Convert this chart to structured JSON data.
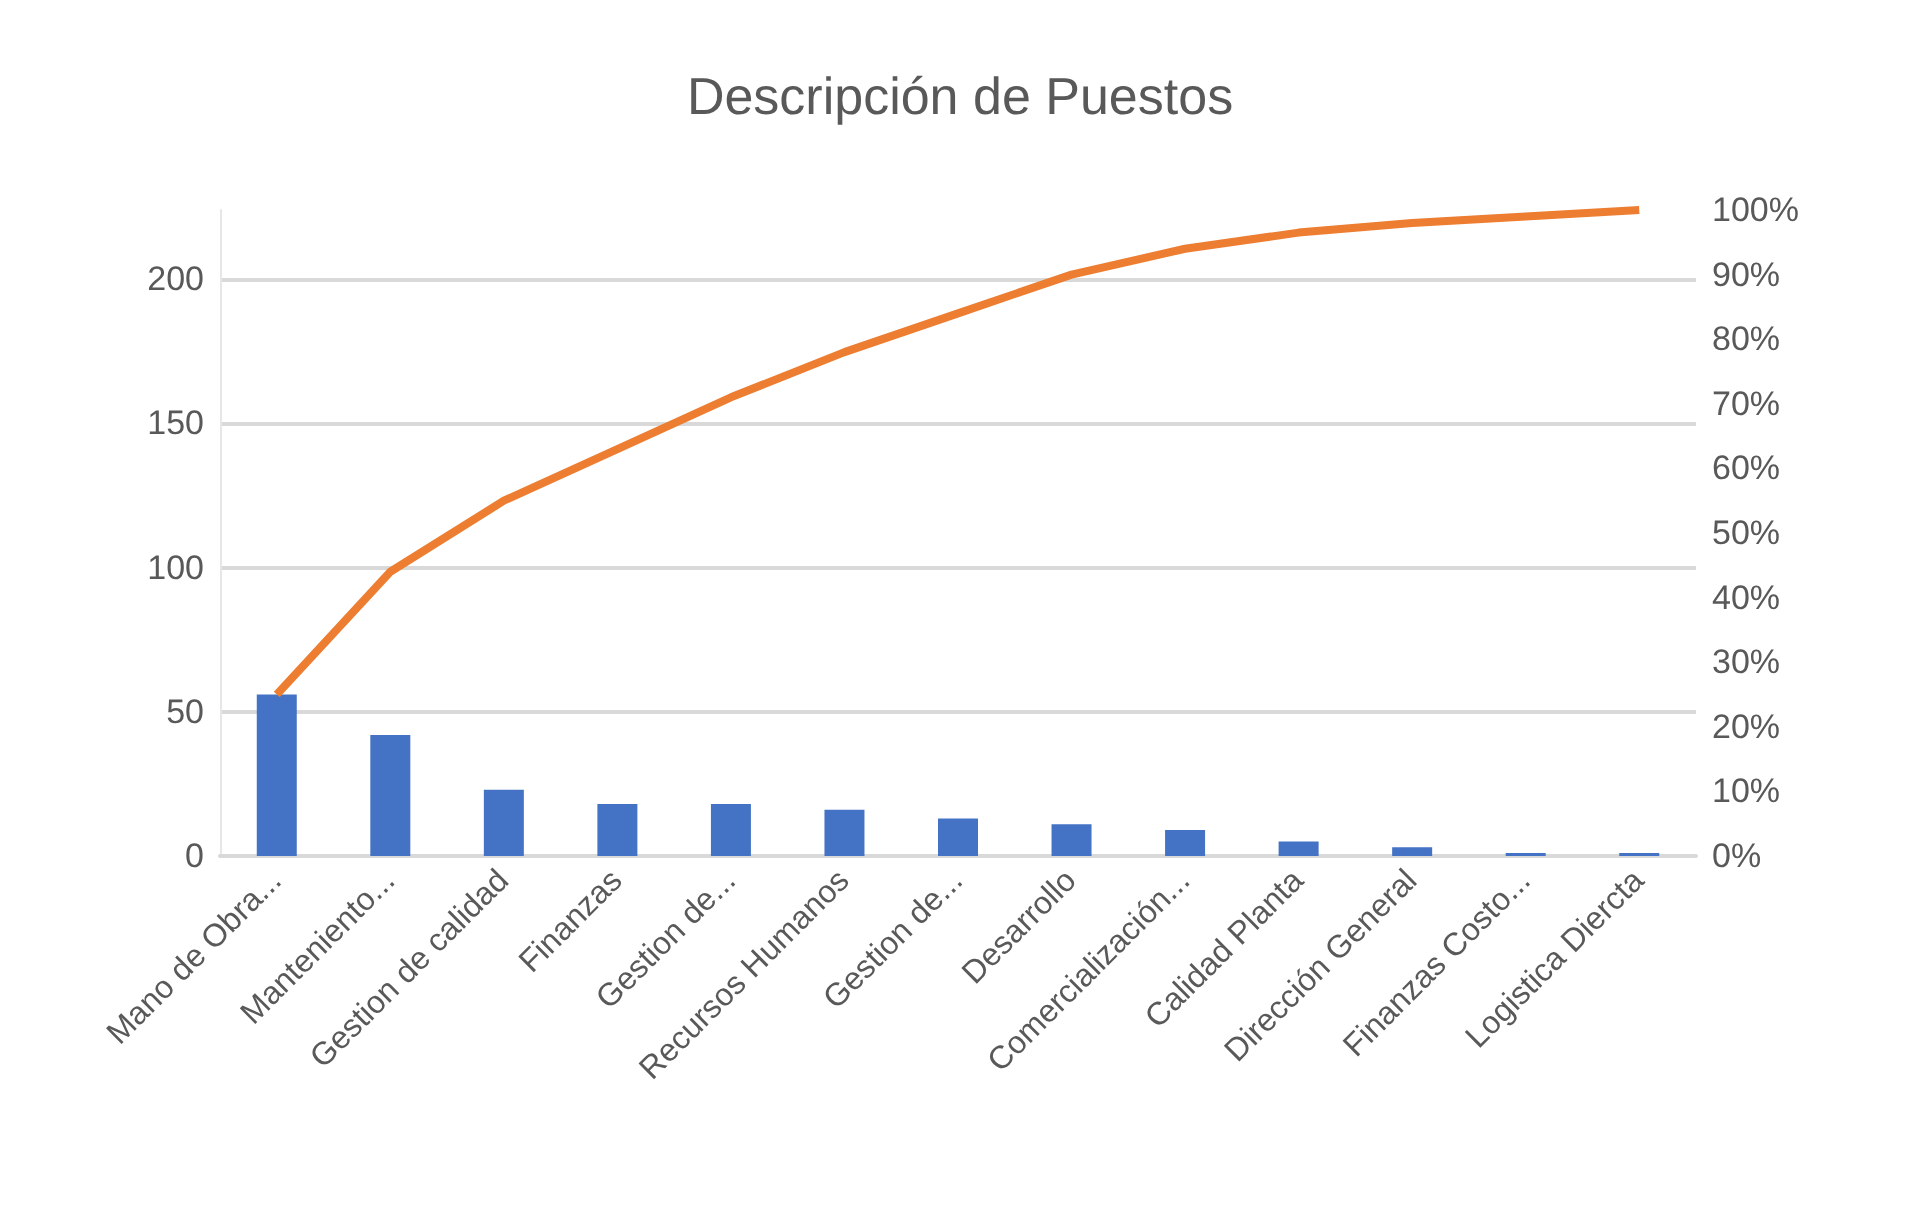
{
  "chart_data": {
    "type": "bar",
    "title": "Descripción de Puestos",
    "categories": [
      "Mano de Obra...",
      "Manteniento...",
      "Gestion de calidad",
      "Finanzas",
      "Gestion de...",
      "Recursos Humanos",
      "Gestion de...",
      "Desarrollo",
      "Comercialización...",
      "Calidad Planta",
      "Dirección General",
      "Finanzas Costo...",
      "Logistica Diercta"
    ],
    "series": [
      {
        "color": "#4472c4",
        "values": [
          56,
          42,
          23,
          18,
          18,
          16,
          13,
          11,
          9,
          5,
          3,
          1,
          1
        ]
      },
      {
        "type": "line",
        "axis": "y2",
        "color": "#ed7d31",
        "values": [
          25,
          44,
          55,
          63,
          71,
          78,
          84,
          90,
          94,
          96.5,
          98,
          99,
          100
        ]
      }
    ],
    "ylim": [
      0,
      224
    ],
    "yticks": [
      0,
      50,
      100,
      150,
      200
    ],
    "y2lim": [
      0,
      100
    ],
    "y2ticks": [
      {
        "value": 0,
        "label": "0%"
      },
      {
        "value": 10,
        "label": "10%"
      },
      {
        "value": 20,
        "label": "20%"
      },
      {
        "value": 30,
        "label": "30%"
      },
      {
        "value": 40,
        "label": "40%"
      },
      {
        "value": 50,
        "label": "50%"
      },
      {
        "value": 60,
        "label": "60%"
      },
      {
        "value": 70,
        "label": "70%"
      },
      {
        "value": 80,
        "label": "80%"
      },
      {
        "value": 90,
        "label": "90%"
      },
      {
        "value": 100,
        "label": "100%"
      }
    ],
    "grid": "y",
    "marker": "none"
  }
}
